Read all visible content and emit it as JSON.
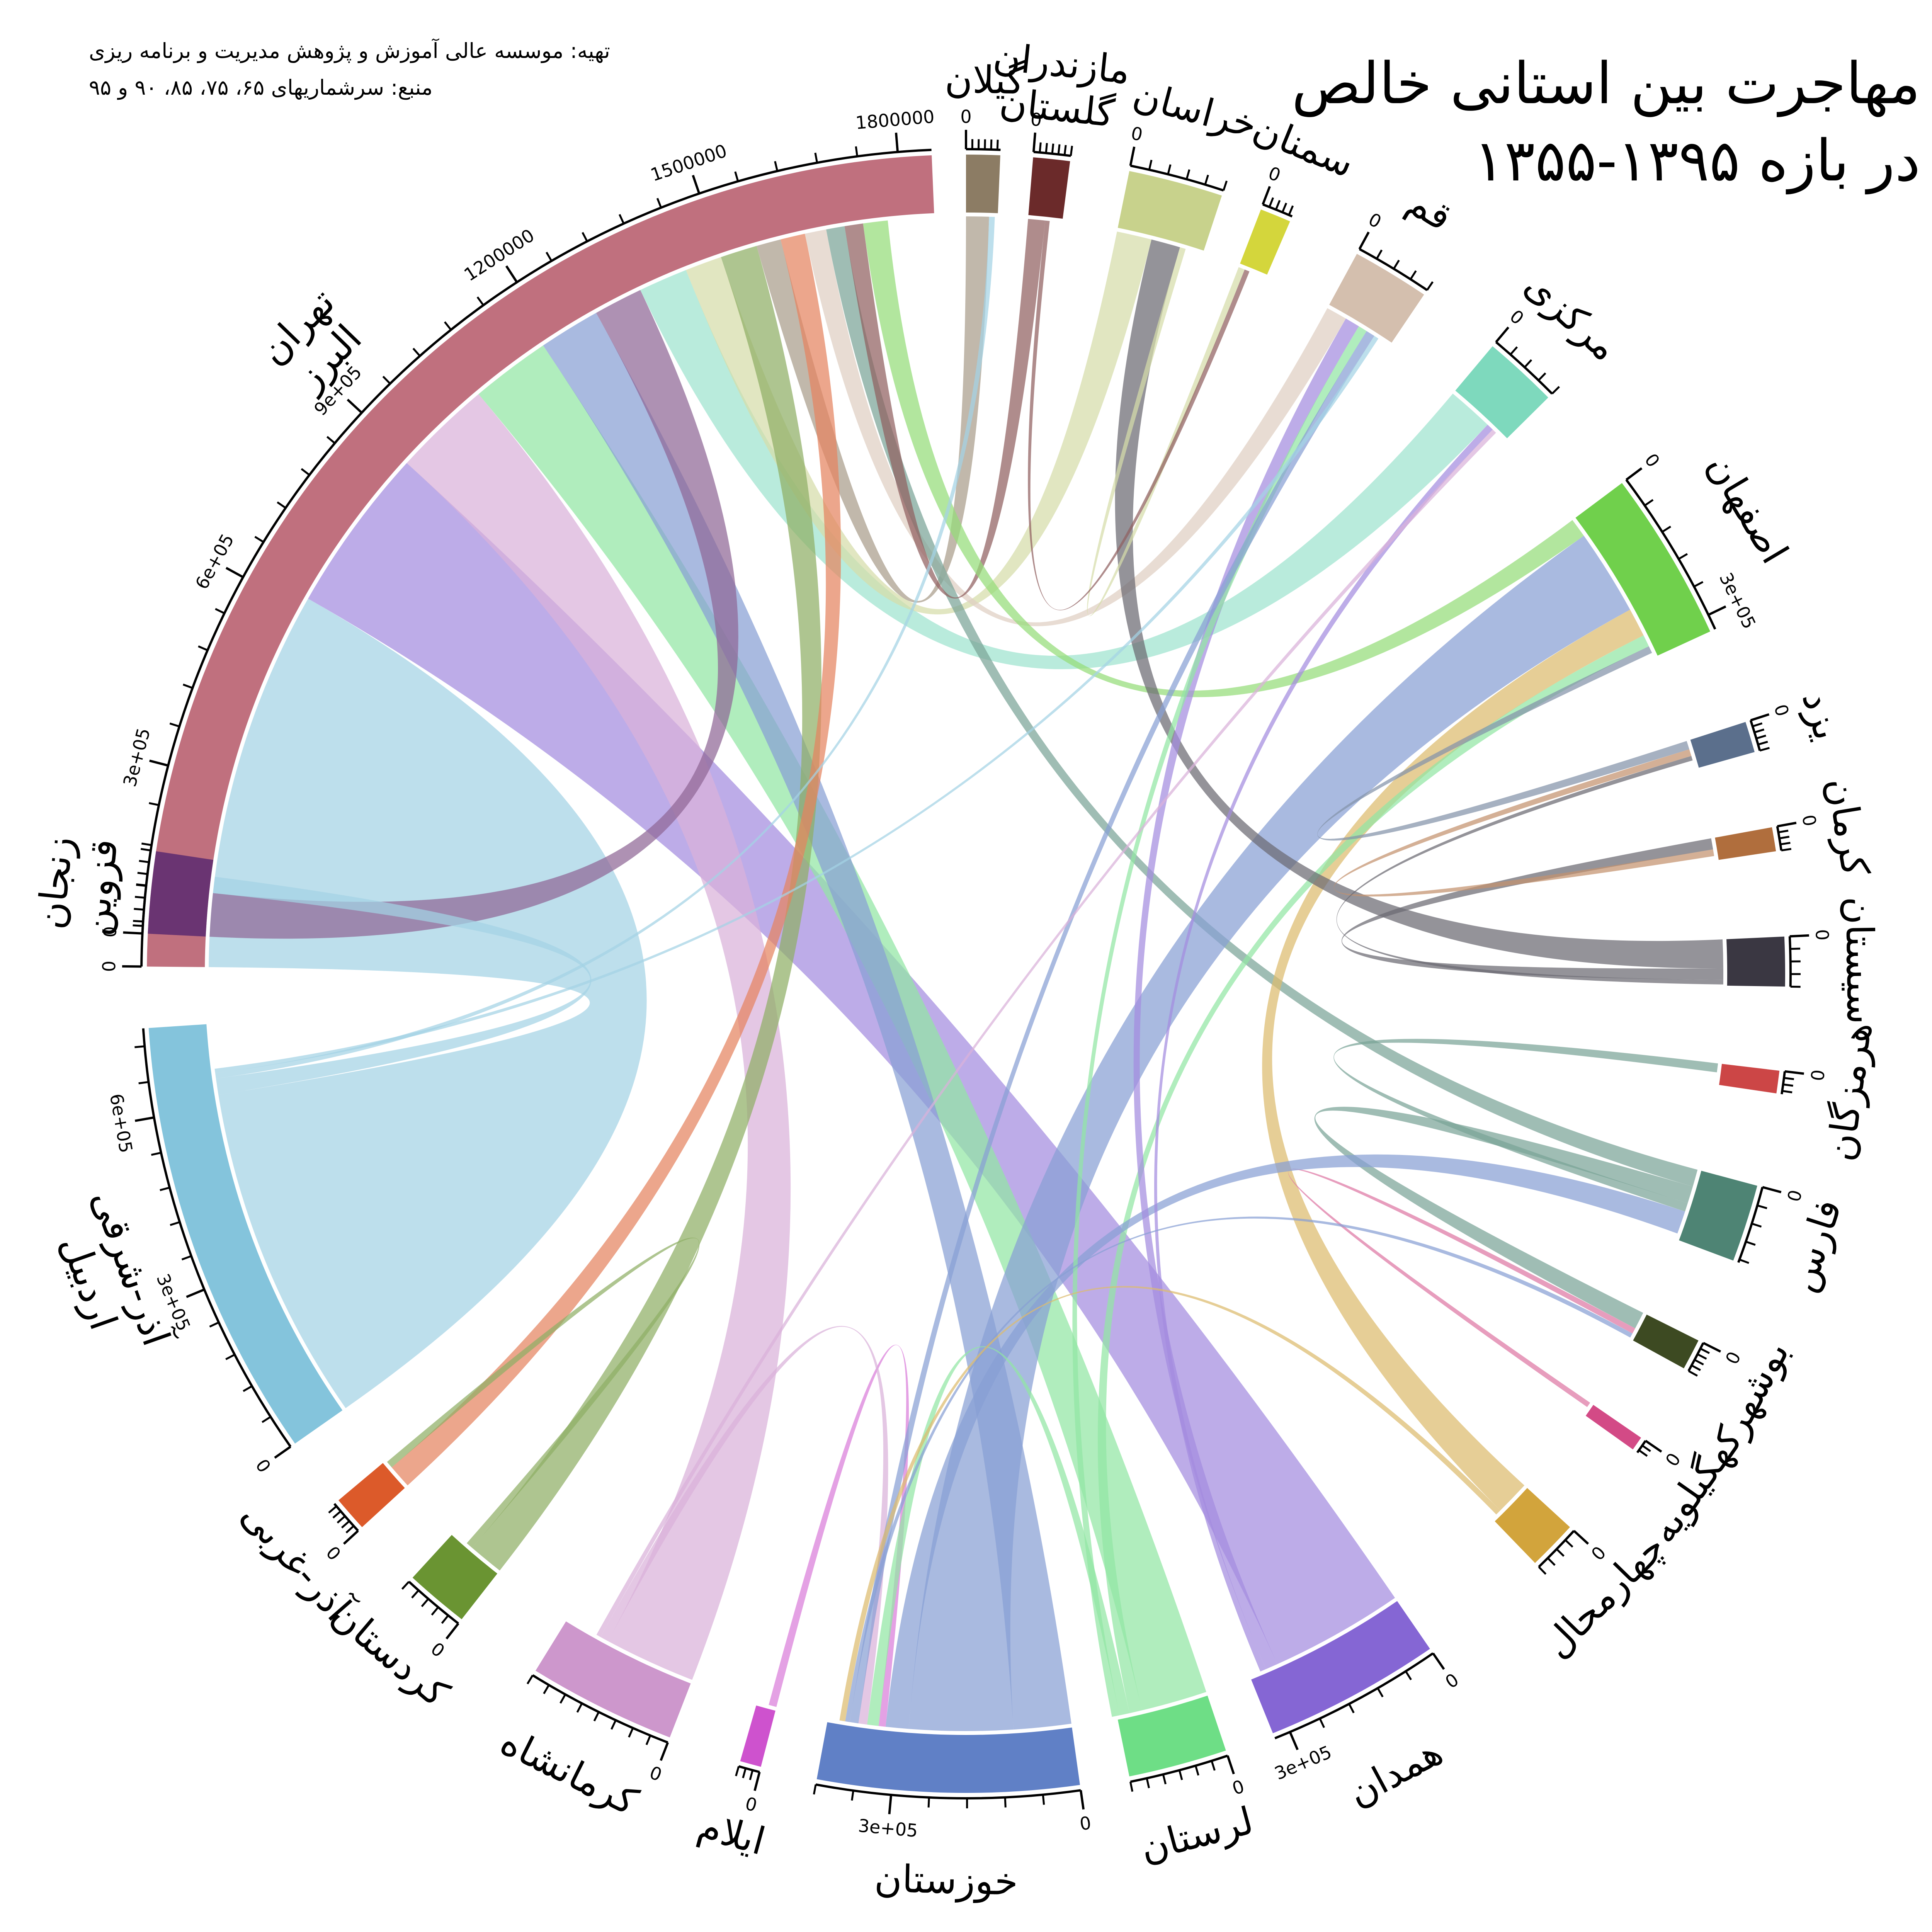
{
  "title": [
    "مهاجرت بین استانی خالص",
    "در بازه ۱۳۹۵-۱۳۵۵"
  ],
  "credits": [
    "تهیه: موسسه عالی آموزش و پژوهش مدیریت و برنامه ریزی",
    "منبع: سرشماریهای ۶۵، ۷۵، ۸۵، ۹۰ و ۹۵"
  ],
  "chart_data": {
    "type": "chord",
    "sectors": [
      {
        "name": "تهران\nالبرز",
        "start_deg": 270.5,
        "end_deg": 357.6,
        "max": 1850000,
        "color": "#c0707e",
        "ticks": [
          0,
          300000,
          600000,
          900000,
          1200000,
          1500000,
          1800000
        ],
        "tick_labels": [
          "0",
          "3e+05",
          "6e+05",
          "9e+05",
          "1200000",
          "1500000",
          "1800000"
        ],
        "tick_step": 60000
      },
      {
        "name": "گیلان",
        "start_deg": 0.0,
        "end_deg": 2.4,
        "max": 55000,
        "color": "#8c7c64",
        "ticks": [
          0
        ],
        "tick_labels": [
          "0"
        ],
        "tick_step": 10000
      },
      {
        "name": "مازندران\nگلستان",
        "start_deg": 4.7,
        "end_deg": 7.3,
        "max": 60000,
        "color": "#6b2a2a",
        "ticks": [
          0
        ],
        "tick_labels": [
          "0"
        ],
        "tick_step": 10000
      },
      {
        "name": "خراسان",
        "start_deg": 11.5,
        "end_deg": 18.2,
        "max": 150000,
        "color": "#c8d28c",
        "ticks": [
          0
        ],
        "tick_labels": [
          "0"
        ],
        "tick_step": 30000
      },
      {
        "name": "سمنان",
        "start_deg": 21.1,
        "end_deg": 23.3,
        "max": 45000,
        "color": "#d4d63c",
        "ticks": [
          0
        ],
        "tick_labels": [
          "0"
        ],
        "tick_step": 10000
      },
      {
        "name": "قم",
        "start_deg": 28.5,
        "end_deg": 34.0,
        "max": 120000,
        "color": "#d4bfae",
        "ticks": [
          0
        ],
        "tick_labels": [
          "0"
        ],
        "tick_step": 30000
      },
      {
        "name": "مرکزی",
        "start_deg": 40.0,
        "end_deg": 45.3,
        "max": 120000,
        "color": "#7ed9bd",
        "ticks": [
          0
        ],
        "tick_labels": [
          "0"
        ],
        "tick_step": 30000
      },
      {
        "name": "اصفهان",
        "start_deg": 53.2,
        "end_deg": 65.3,
        "max": 330000,
        "color": "#70d04c",
        "ticks": [
          0,
          300000
        ],
        "tick_labels": [
          "0",
          "3e+05"
        ],
        "tick_step": 60000
      },
      {
        "name": "یزد",
        "start_deg": 72.1,
        "end_deg": 74.3,
        "max": 50000,
        "color": "#5b6f8c",
        "ticks": [
          0
        ],
        "tick_labels": [
          "0"
        ],
        "tick_step": 10000
      },
      {
        "name": "کرمان",
        "start_deg": 79.7,
        "end_deg": 81.4,
        "max": 40000,
        "color": "#b06e3d",
        "ticks": [
          0
        ],
        "tick_labels": [
          "0"
        ],
        "tick_step": 10000
      },
      {
        "name": "سیستان",
        "start_deg": 87.4,
        "end_deg": 90.9,
        "max": 80000,
        "color": "#3a3742",
        "ticks": [
          0
        ],
        "tick_labels": [
          "0"
        ],
        "tick_step": 20000
      },
      {
        "name": "هرمزگان",
        "start_deg": 96.8,
        "end_deg": 98.4,
        "max": 35000,
        "color": "#cc4646",
        "ticks": [
          0
        ],
        "tick_labels": [
          "0"
        ],
        "tick_step": 10000
      },
      {
        "name": "فارس",
        "start_deg": 105.0,
        "end_deg": 110.5,
        "max": 125000,
        "color": "#4e8474",
        "ticks": [
          0
        ],
        "tick_labels": [
          "0"
        ],
        "tick_step": 30000
      },
      {
        "name": "بوشهر",
        "start_deg": 116.6,
        "end_deg": 118.8,
        "max": 50000,
        "color": "#3d4a22",
        "ticks": [
          0
        ],
        "tick_labels": [
          "0"
        ],
        "tick_step": 10000
      },
      {
        "name": "کهگیلویه",
        "start_deg": 124.5,
        "end_deg": 125.5,
        "max": 25000,
        "color": "#d34a86",
        "ticks": [
          0
        ],
        "tick_labels": [
          "0"
        ],
        "tick_step": 10000
      },
      {
        "name": "چهارمحال",
        "start_deg": 132.5,
        "end_deg": 136.0,
        "max": 80000,
        "color": "#d2a43c",
        "ticks": [
          0
        ],
        "tick_labels": [
          "0"
        ],
        "tick_step": 20000
      },
      {
        "name": "همدان",
        "start_deg": 145.5,
        "end_deg": 158.0,
        "max": 330000,
        "color": "#8566d4",
        "ticks": [
          0,
          300000
        ],
        "tick_labels": [
          "0",
          "3e+05"
        ],
        "tick_step": 60000
      },
      {
        "name": "لرستان",
        "start_deg": 161.5,
        "end_deg": 168.5,
        "max": 180000,
        "color": "#6ede86",
        "ticks": [
          0
        ],
        "tick_labels": [
          "0"
        ],
        "tick_step": 30000
      },
      {
        "name": "خوزستان",
        "start_deg": 172.0,
        "end_deg": 190.5,
        "max": 420000,
        "color": "#6080c6",
        "ticks": [
          0,
          300000
        ],
        "tick_labels": [
          "0",
          "3e+05"
        ],
        "tick_step": 60000
      },
      {
        "name": "ایلام",
        "start_deg": 194.5,
        "end_deg": 196.0,
        "max": 30000,
        "color": "#ce52ce",
        "ticks": [
          0
        ],
        "tick_labels": [
          "0"
        ],
        "tick_step": 10000
      },
      {
        "name": "کرمانشاه",
        "start_deg": 201.2,
        "end_deg": 211.7,
        "max": 240000,
        "color": "#cd97cc",
        "ticks": [
          0
        ],
        "tick_labels": [
          "0"
        ],
        "tick_step": 30000
      },
      {
        "name": "کردستان",
        "start_deg": 218.0,
        "end_deg": 222.5,
        "max": 100000,
        "color": "#6a9432",
        "ticks": [
          0
        ],
        "tick_labels": [
          "0"
        ],
        "tick_step": 20000
      },
      {
        "name": "آذر-غربی",
        "start_deg": 227.5,
        "end_deg": 230.0,
        "max": 55000,
        "color": "#dc5a2a",
        "ticks": [
          0
        ],
        "tick_labels": [
          "0"
        ],
        "tick_step": 10000
      },
      {
        "name": "آذر-شرقی\nاردبیل",
        "start_deg": 235.0,
        "end_deg": 266.2,
        "max": 750000,
        "color": "#84c4dc",
        "ticks": [
          0,
          300000,
          600000
        ],
        "tick_labels": [
          "0",
          "3e+05",
          "6e+05"
        ],
        "tick_step": 60000
      },
      {
        "name": "زنجان\nقزوین",
        "start_deg": 272.8,
        "end_deg": 278.6,
        "max": 140000,
        "color": "#6a3472",
        "ticks": [
          0
        ],
        "tick_labels": [
          "0"
        ],
        "tick_step": 20000
      }
    ],
    "flows": [
      {
        "from": "آذر-شرقی\nاردبیل",
        "to": "تهران\nالبرز",
        "value": 620000
      },
      {
        "from": "همدان",
        "to": "تهران\nالبرز",
        "value": 270000
      },
      {
        "from": "کرمانشاه",
        "to": "تهران\nالبرز",
        "value": 160000
      },
      {
        "from": "لرستان",
        "to": "تهران\nالبرز",
        "value": 130000
      },
      {
        "from": "خوزستان",
        "to": "تهران\nالبرز",
        "value": 100000
      },
      {
        "from": "زنجان\nقزوین",
        "to": "تهران\nالبرز",
        "value": 80000
      },
      {
        "from": "مرکزی",
        "to": "تهران\nالبرز",
        "value": 80000
      },
      {
        "from": "خراسان",
        "to": "تهران\nالبرز",
        "value": 60000
      },
      {
        "from": "کردستان",
        "to": "تهران\nالبرز",
        "value": 60000
      },
      {
        "from": "گیلان",
        "to": "تهران\nالبرز",
        "value": 40000
      },
      {
        "from": "آذر-غربی",
        "to": "تهران\nالبرز",
        "value": 40000
      },
      {
        "from": "قم",
        "to": "تهران\nالبرز",
        "value": 35000
      },
      {
        "from": "فارس",
        "to": "تهران\nالبرز",
        "value": 30000
      },
      {
        "from": "مازندران\nگلستان",
        "to": "تهران\nالبرز",
        "value": 30000
      },
      {
        "from": "اصفهان",
        "to": "تهران\nالبرز",
        "value": 40000
      },
      {
        "from": "خوزستان",
        "to": "اصفهان",
        "value": 180000
      },
      {
        "from": "چهارمحال",
        "to": "اصفهان",
        "value": 60000
      },
      {
        "from": "لرستان",
        "to": "اصفهان",
        "value": 25000
      },
      {
        "from": "سیستان",
        "to": "خراسان",
        "value": 50000
      },
      {
        "from": "سیستان",
        "to": "کرمان",
        "value": 20000
      },
      {
        "from": "یزد",
        "to": "اصفهان",
        "value": 15000
      },
      {
        "from": "کرمان",
        "to": "یزد",
        "value": 12000
      },
      {
        "from": "فارس",
        "to": "بوشهر",
        "value": 30000
      },
      {
        "from": "فارس",
        "to": "هرمزگان",
        "value": 15000
      },
      {
        "from": "کهگیلویه",
        "to": "بوشهر",
        "value": 10000
      },
      {
        "from": "خوزستان",
        "to": "فارس",
        "value": 40000
      },
      {
        "from": "همدان",
        "to": "قم",
        "value": 25000
      },
      {
        "from": "آذر-شرقی\nاردبیل",
        "to": "زنجان\nقزوین",
        "value": 30000
      },
      {
        "from": "کردستان",
        "to": "آذر-غربی",
        "value": 12000
      },
      {
        "from": "ایلام",
        "to": "خوزستان",
        "value": 12000
      },
      {
        "from": "لرستان",
        "to": "خوزستان",
        "value": 20000
      },
      {
        "from": "کرمانشاه",
        "to": "خوزستان",
        "value": 15000
      },
      {
        "from": "خراسان",
        "to": "سمنان",
        "value": 10000
      },
      {
        "from": "مازندران\nگلستان",
        "to": "سمنان",
        "value": 8000
      },
      {
        "from": "آذر-شرقی\nاردبیل",
        "to": "گیلان",
        "value": 10000
      },
      {
        "from": "همدان",
        "to": "مرکزی",
        "value": 12000
      },
      {
        "from": "لرستان",
        "to": "قم",
        "value": 15000
      },
      {
        "from": "خوزستان",
        "to": "قم",
        "value": 15000
      },
      {
        "from": "آذر-شرقی\nاردبیل",
        "to": "قم",
        "value": 8000
      },
      {
        "from": "سیستان",
        "to": "یزد",
        "value": 8000
      },
      {
        "from": "کرمانشاه",
        "to": "مرکزی",
        "value": 8000
      },
      {
        "from": "خوزستان",
        "to": "بوشهر",
        "value": 8000
      },
      {
        "from": "چهارمحال",
        "to": "خوزستان",
        "value": 10000
      }
    ]
  }
}
